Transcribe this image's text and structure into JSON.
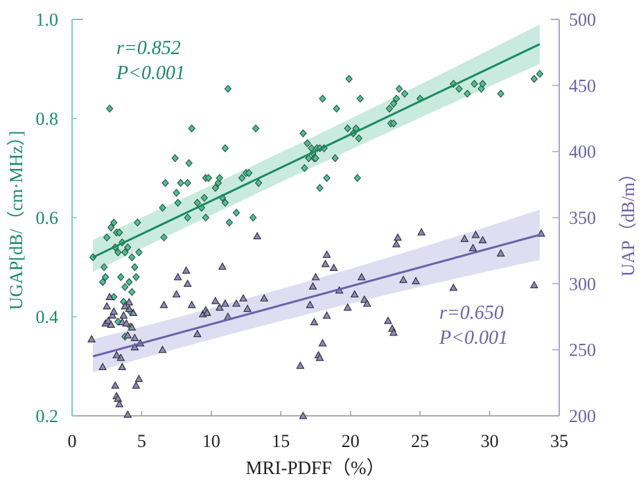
{
  "chart_data": {
    "type": "scatter",
    "title": "",
    "xlabel": "MRI-PDFF（%）",
    "ylabel_left": "UGAP[dB/（cm·MHz）]",
    "ylabel_right": "UAP（dB/m）",
    "xlim": [
      0,
      35
    ],
    "ylim_left": [
      0.2,
      1.0
    ],
    "ylim_right": [
      200,
      500
    ],
    "x_ticks": [
      "0",
      "5",
      "10",
      "15",
      "20",
      "25",
      "30",
      "35"
    ],
    "y_left_ticks": [
      "0.2",
      "0.4",
      "0.6",
      "0.8",
      "1.0"
    ],
    "y_right_ticks": [
      "200",
      "250",
      "300",
      "350",
      "400",
      "450",
      "500"
    ],
    "grid": false,
    "colors": {
      "ugap": "#1a8a64",
      "ugap_marker": "#4fbf94",
      "ugap_band": "#bfe6d8",
      "uap": "#6a62a8",
      "uap_marker": "#8f88c4",
      "uap_band": "#d9d7ee",
      "axis_left": "#7dcfb0",
      "axis_right": "#a9a4d6"
    },
    "series": [
      {
        "name": "UGAP",
        "axis": "left",
        "marker": "diamond",
        "annotation": {
          "r": "r=0.852",
          "p": "P<0.001"
        },
        "fit": {
          "x": [
            1.5,
            33.6
          ],
          "y": [
            0.52,
            0.95
          ],
          "ci_low_start": 0.49,
          "ci_high_start": 0.555,
          "ci_low_end": 0.91,
          "ci_high_end": 0.99
        },
        "points": [
          [
            1.5,
            0.52
          ],
          [
            2.7,
            0.82
          ],
          [
            2.3,
            0.5
          ],
          [
            2.4,
            0.48
          ],
          [
            2.2,
            0.47
          ],
          [
            2.5,
            0.56
          ],
          [
            2.8,
            0.58
          ],
          [
            3.0,
            0.59
          ],
          [
            3.2,
            0.57
          ],
          [
            3.4,
            0.57
          ],
          [
            3.1,
            0.54
          ],
          [
            3.3,
            0.53
          ],
          [
            3.6,
            0.55
          ],
          [
            3.8,
            0.53
          ],
          [
            4.0,
            0.54
          ],
          [
            4.3,
            0.52
          ],
          [
            4.8,
            0.53
          ],
          [
            4.7,
            0.59
          ],
          [
            3.5,
            0.48
          ],
          [
            3.8,
            0.46
          ],
          [
            4.1,
            0.47
          ],
          [
            3.0,
            0.44
          ],
          [
            3.7,
            0.43
          ],
          [
            4.3,
            0.45
          ],
          [
            4.5,
            0.5
          ],
          [
            4.6,
            0.48
          ],
          [
            4.2,
            0.41
          ],
          [
            3.3,
            0.39
          ],
          [
            4.2,
            0.38
          ],
          [
            3.8,
            0.36
          ],
          [
            6.5,
            0.62
          ],
          [
            6.6,
            0.56
          ],
          [
            6.7,
            0.67
          ],
          [
            7.4,
            0.72
          ],
          [
            7.5,
            0.65
          ],
          [
            7.6,
            0.63
          ],
          [
            7.8,
            0.67
          ],
          [
            8.3,
            0.6
          ],
          [
            8.3,
            0.67
          ],
          [
            8.4,
            0.71
          ],
          [
            8.6,
            0.78
          ],
          [
            9.0,
            0.63
          ],
          [
            9.3,
            0.62
          ],
          [
            9.5,
            0.64
          ],
          [
            9.6,
            0.6
          ],
          [
            9.6,
            0.68
          ],
          [
            9.8,
            0.68
          ],
          [
            10.3,
            0.66
          ],
          [
            10.5,
            0.67
          ],
          [
            10.6,
            0.68
          ],
          [
            10.8,
            0.64
          ],
          [
            11.0,
            0.63
          ],
          [
            11.0,
            0.74
          ],
          [
            11.2,
            0.86
          ],
          [
            11.3,
            0.59
          ],
          [
            11.8,
            0.61
          ],
          [
            12.2,
            0.68
          ],
          [
            12.5,
            0.69
          ],
          [
            12.7,
            0.69
          ],
          [
            13.0,
            0.6
          ],
          [
            13.2,
            0.78
          ],
          [
            13.4,
            0.67
          ],
          [
            16.6,
            0.77
          ],
          [
            16.7,
            0.7
          ],
          [
            16.9,
            0.75
          ],
          [
            17.0,
            0.72
          ],
          [
            17.2,
            0.74
          ],
          [
            17.3,
            0.73
          ],
          [
            17.4,
            0.72
          ],
          [
            17.5,
            0.72
          ],
          [
            17.6,
            0.74
          ],
          [
            17.8,
            0.74
          ],
          [
            17.8,
            0.66
          ],
          [
            18.0,
            0.84
          ],
          [
            18.1,
            0.74
          ],
          [
            18.3,
            0.68
          ],
          [
            18.9,
            0.72
          ],
          [
            19.0,
            0.82
          ],
          [
            19.8,
            0.78
          ],
          [
            19.9,
            0.88
          ],
          [
            20.2,
            0.77
          ],
          [
            20.4,
            0.78
          ],
          [
            20.5,
            0.68
          ],
          [
            20.6,
            0.76
          ],
          [
            20.7,
            0.84
          ],
          [
            22.8,
            0.82
          ],
          [
            22.9,
            0.79
          ],
          [
            23.1,
            0.83
          ],
          [
            23.1,
            0.79
          ],
          [
            23.3,
            0.84
          ],
          [
            23.5,
            0.86
          ],
          [
            23.9,
            0.85
          ],
          [
            25.0,
            0.84
          ],
          [
            27.4,
            0.87
          ],
          [
            27.8,
            0.86
          ],
          [
            28.4,
            0.85
          ],
          [
            28.9,
            0.87
          ],
          [
            29.4,
            0.86
          ],
          [
            29.5,
            0.87
          ],
          [
            30.8,
            0.85
          ],
          [
            33.2,
            0.88
          ],
          [
            33.6,
            0.89
          ]
        ]
      },
      {
        "name": "UAP",
        "axis": "right",
        "marker": "triangle",
        "annotation": {
          "r": "r=0.650",
          "p": "P<0.001"
        },
        "fit": {
          "x": [
            1.5,
            33.6
          ],
          "y": [
            245,
            337
          ],
          "ci_low_start": 233,
          "ci_high_start": 258,
          "ci_low_end": 318,
          "ci_high_end": 356
        },
        "points": [
          [
            1.4,
            258
          ],
          [
            2.2,
            237
          ],
          [
            2.4,
            270
          ],
          [
            2.5,
            283
          ],
          [
            2.6,
            272
          ],
          [
            2.7,
            290
          ],
          [
            2.8,
            269
          ],
          [
            2.9,
            276
          ],
          [
            3.0,
            279
          ],
          [
            3.1,
            223
          ],
          [
            3.2,
            215
          ],
          [
            3.3,
            213
          ],
          [
            3.4,
            209
          ],
          [
            3.5,
            244
          ],
          [
            3.6,
            271
          ],
          [
            3.6,
            237
          ],
          [
            3.7,
            276
          ],
          [
            3.9,
            270
          ],
          [
            4.0,
            201
          ],
          [
            4.1,
            286
          ],
          [
            4.3,
            267
          ],
          [
            4.4,
            278
          ],
          [
            4.5,
            252
          ],
          [
            4.6,
            223
          ],
          [
            4.8,
            228
          ],
          [
            3.2,
            246
          ],
          [
            4.1,
            281
          ],
          [
            3.8,
            283
          ],
          [
            4.5,
            259
          ],
          [
            4.9,
            255
          ],
          [
            4.0,
            261
          ],
          [
            6.5,
            250
          ],
          [
            6.6,
            284
          ],
          [
            7.5,
            292
          ],
          [
            7.6,
            305
          ],
          [
            8.2,
            310
          ],
          [
            8.3,
            300
          ],
          [
            8.6,
            284
          ],
          [
            9.0,
            262
          ],
          [
            9.4,
            277
          ],
          [
            9.6,
            280
          ],
          [
            9.7,
            278
          ],
          [
            10.3,
            287
          ],
          [
            10.6,
            282
          ],
          [
            10.8,
            313
          ],
          [
            11.0,
            285
          ],
          [
            11.2,
            275
          ],
          [
            11.8,
            285
          ],
          [
            12.3,
            289
          ],
          [
            12.6,
            281
          ],
          [
            13.3,
            336
          ],
          [
            13.8,
            289
          ],
          [
            16.4,
            238
          ],
          [
            16.6,
            200
          ],
          [
            17.1,
            284
          ],
          [
            17.3,
            298
          ],
          [
            17.4,
            271
          ],
          [
            17.5,
            305
          ],
          [
            17.7,
            246
          ],
          [
            17.8,
            244
          ],
          [
            18.0,
            255
          ],
          [
            18.2,
            315
          ],
          [
            18.3,
            276
          ],
          [
            18.3,
            322
          ],
          [
            18.8,
            312
          ],
          [
            19.2,
            295
          ],
          [
            19.8,
            282
          ],
          [
            20.3,
            292
          ],
          [
            20.8,
            305
          ],
          [
            21.0,
            288
          ],
          [
            21.2,
            285
          ],
          [
            22.7,
            272
          ],
          [
            23.0,
            266
          ],
          [
            23.1,
            263
          ],
          [
            23.3,
            330
          ],
          [
            23.4,
            335
          ],
          [
            23.8,
            303
          ],
          [
            24.7,
            302
          ],
          [
            25.1,
            339
          ],
          [
            27.4,
            297
          ],
          [
            28.2,
            334
          ],
          [
            28.8,
            327
          ],
          [
            29.0,
            337
          ],
          [
            29.5,
            333
          ],
          [
            30.8,
            323
          ],
          [
            33.2,
            299
          ],
          [
            33.7,
            338
          ]
        ]
      }
    ]
  }
}
